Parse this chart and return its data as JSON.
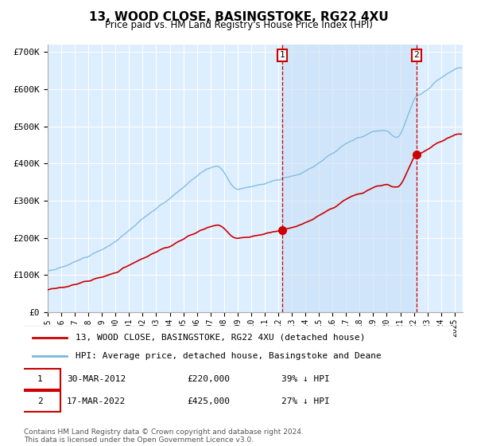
{
  "title": "13, WOOD CLOSE, BASINGSTOKE, RG22 4XU",
  "subtitle": "Price paid vs. HM Land Registry's House Price Index (HPI)",
  "legend1": "13, WOOD CLOSE, BASINGSTOKE, RG22 4XU (detached house)",
  "legend2": "HPI: Average price, detached house, Basingstoke and Deane",
  "annotation1_date": "30-MAR-2012",
  "annotation1_price": "£220,000",
  "annotation1_pct": "39% ↓ HPI",
  "annotation1_label": "1",
  "annotation2_date": "17-MAR-2022",
  "annotation2_price": "£425,000",
  "annotation2_pct": "27% ↓ HPI",
  "annotation2_label": "2",
  "sale1_year": 2012.24,
  "sale1_value": 220000,
  "sale2_year": 2022.21,
  "sale2_value": 425000,
  "ylabel_ticks": [
    "£0",
    "£100K",
    "£200K",
    "£300K",
    "£400K",
    "£500K",
    "£600K",
    "£700K"
  ],
  "ylabel_values": [
    0,
    100000,
    200000,
    300000,
    400000,
    500000,
    600000,
    700000
  ],
  "hpi_color": "#7ab8e0",
  "price_color": "#cc0000",
  "background_color": "#ddeeff",
  "grid_color": "#ffffff",
  "shade_color": "#c8dff5",
  "footer": "Contains HM Land Registry data © Crown copyright and database right 2024.\nThis data is licensed under the Open Government Licence v3.0."
}
